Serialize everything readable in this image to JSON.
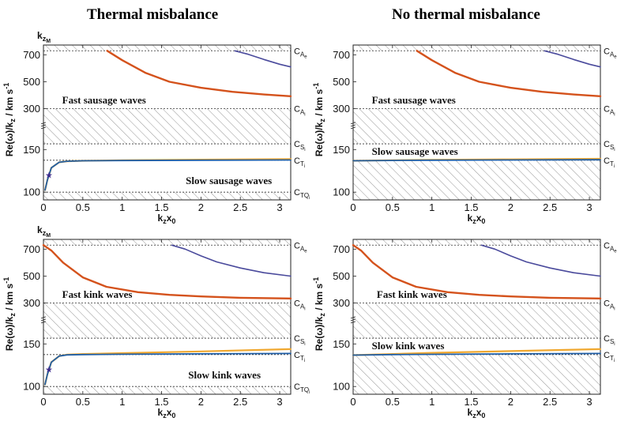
{
  "column_titles": [
    "Thermal misbalance",
    "No thermal misbalance"
  ],
  "colors": {
    "fast_upper": "#4a4a9c",
    "fast_main": "#d4521c",
    "slow_orange": "#f0a830",
    "slow_blue": "#1f5fa8",
    "star": "#3d2a8c"
  },
  "chart_data": [
    {
      "type": "line",
      "panel": "Thermal misbalance / sausage",
      "title": "Thermal misbalance",
      "corner_label": "k_{z_M}",
      "xlabel": "k_z x_0",
      "ylabel": "Re(ω)/k_z / km s^{-1}",
      "xlim": [
        0,
        3.14
      ],
      "x_ticks": [
        "0",
        "0.5",
        "1",
        "1.5",
        "2",
        "2.5",
        "3"
      ],
      "y_ticks": [
        "100",
        "150",
        "300",
        "500",
        "700"
      ],
      "y_scale": "broken axis (≈ logarithmic near 100–150)",
      "hatched_regions": [
        [
          742,
          760
        ],
        [
          165,
          300
        ],
        [
          94,
          100
        ]
      ],
      "speed_lines": {
        "C_Ae": 742,
        "C_Ai": 300,
        "C_Si": 165,
        "C_Ti": 131.5,
        "C_TQi": 100
      },
      "region_labels": [
        "Fast sausage waves",
        "Slow sausage waves"
      ],
      "series": [
        {
          "x": [
            2.43,
            2.6,
            2.8,
            3.0,
            3.14
          ],
          "y": [
            742,
            705,
            665,
            630,
            610
          ]
        },
        {
          "x": [
            0.81,
            1.0,
            1.3,
            1.6,
            2.0,
            2.4,
            2.8,
            3.14
          ],
          "y": [
            742,
            660,
            565,
            500,
            455,
            425,
            405,
            392
          ]
        },
        {
          "x": [
            0.02,
            0.05,
            0.1,
            0.2,
            0.3,
            0.5,
            1.0,
            2.0,
            3.14
          ],
          "y": [
            102,
            112,
            124,
            129.5,
            130.5,
            131,
            131.6,
            132.5,
            133.5
          ]
        },
        {
          "x": [
            0.02,
            0.05,
            0.1,
            0.2,
            0.3,
            0.5,
            1.0,
            2.0,
            3.14
          ],
          "y": [
            102,
            112,
            124,
            129.5,
            130.5,
            131,
            131.2,
            131.6,
            132
          ]
        }
      ],
      "star": {
        "x": 0.07,
        "y": 117
      }
    },
    {
      "type": "line",
      "panel": "No thermal misbalance / sausage",
      "title": "No thermal misbalance",
      "xlabel": "k_z x_0",
      "ylabel": "Re(ω)/k_z / km s^{-1}",
      "xlim": [
        0,
        3.14
      ],
      "x_ticks": [
        "0",
        "0.5",
        "1",
        "1.5",
        "2",
        "2.5",
        "3"
      ],
      "y_ticks": [
        "100",
        "150",
        "300",
        "500",
        "700"
      ],
      "hatched_regions": [
        [
          742,
          760
        ],
        [
          165,
          300
        ],
        [
          94,
          131.5
        ]
      ],
      "speed_lines": {
        "C_Ae": 742,
        "C_Ai": 300,
        "C_Si": 165,
        "C_Ti": 131.5
      },
      "region_labels": [
        "Fast sausage waves",
        "Slow sausage waves"
      ],
      "series": [
        {
          "x": [
            2.43,
            2.6,
            2.8,
            3.0,
            3.14
          ],
          "y": [
            742,
            705,
            665,
            630,
            610
          ]
        },
        {
          "x": [
            0.81,
            1.0,
            1.3,
            1.6,
            2.0,
            2.4,
            2.8,
            3.14
          ],
          "y": [
            742,
            660,
            565,
            500,
            455,
            425,
            405,
            392
          ]
        },
        {
          "x": [
            0,
            0.5,
            1.0,
            2.0,
            3.14
          ],
          "y": [
            131,
            131.6,
            132.2,
            133,
            134
          ]
        },
        {
          "x": [
            0,
            0.5,
            1.0,
            2.0,
            3.14
          ],
          "y": [
            131,
            131.3,
            131.6,
            132,
            132.4
          ]
        }
      ]
    },
    {
      "type": "line",
      "panel": "Thermal misbalance / kink",
      "corner_label": "k_{z_M}",
      "xlabel": "k_z x_0",
      "ylabel": "Re(ω)/k_z / km s^{-1}",
      "xlim": [
        0,
        3.14
      ],
      "x_ticks": [
        "0",
        "0.5",
        "1",
        "1.5",
        "2",
        "2.5",
        "3"
      ],
      "y_ticks": [
        "100",
        "150",
        "300",
        "500",
        "700"
      ],
      "hatched_regions": [
        [
          742,
          760
        ],
        [
          165,
          300
        ],
        [
          94,
          100
        ]
      ],
      "speed_lines": {
        "C_Ae": 742,
        "C_Ai": 300,
        "C_Si": 165,
        "C_Ti": 131.5,
        "C_TQi": 100
      },
      "region_labels": [
        "Fast kink waves",
        "Slow kink waves"
      ],
      "series": [
        {
          "x": [
            1.63,
            1.8,
            2.0,
            2.2,
            2.5,
            2.8,
            3.14
          ],
          "y": [
            742,
            700,
            650,
            605,
            560,
            525,
            500
          ]
        },
        {
          "x": [
            0,
            0.1,
            0.25,
            0.5,
            0.8,
            1.2,
            1.6,
            2.0,
            2.5,
            3.14
          ],
          "y": [
            742,
            690,
            600,
            490,
            420,
            380,
            360,
            348,
            338,
            333
          ]
        },
        {
          "x": [
            0.02,
            0.05,
            0.1,
            0.2,
            0.3,
            0.5,
            1.0,
            2.0,
            3.14
          ],
          "y": [
            102,
            112,
            124,
            130,
            131.5,
            132.5,
            134,
            137,
            141
          ]
        },
        {
          "x": [
            0.02,
            0.05,
            0.1,
            0.2,
            0.3,
            0.5,
            1.0,
            2.0,
            3.14
          ],
          "y": [
            102,
            112,
            124,
            130,
            131.2,
            131.6,
            132.1,
            132.8,
            133.5
          ]
        }
      ],
      "star": {
        "x": 0.07,
        "y": 117
      }
    },
    {
      "type": "line",
      "panel": "No thermal misbalance / kink",
      "xlabel": "k_z x_0",
      "ylabel": "Re(ω)/k_z / km s^{-1}",
      "xlim": [
        0,
        3.14
      ],
      "x_ticks": [
        "0",
        "0.5",
        "1",
        "1.5",
        "2",
        "2.5",
        "3"
      ],
      "y_ticks": [
        "100",
        "150",
        "300",
        "500",
        "700"
      ],
      "hatched_regions": [
        [
          742,
          760
        ],
        [
          165,
          300
        ],
        [
          94,
          131.5
        ]
      ],
      "speed_lines": {
        "C_Ae": 742,
        "C_Ai": 300,
        "C_Si": 165,
        "C_Ti": 131.5
      },
      "region_labels": [
        "Fast kink waves",
        "Slow kink waves"
      ],
      "series": [
        {
          "x": [
            1.63,
            1.8,
            2.0,
            2.2,
            2.5,
            2.8,
            3.14
          ],
          "y": [
            742,
            700,
            650,
            605,
            560,
            525,
            500
          ]
        },
        {
          "x": [
            0,
            0.1,
            0.25,
            0.5,
            0.8,
            1.2,
            1.6,
            2.0,
            2.5,
            3.14
          ],
          "y": [
            742,
            690,
            600,
            490,
            420,
            380,
            360,
            348,
            338,
            333
          ]
        },
        {
          "x": [
            0,
            0.5,
            1.0,
            2.0,
            3.14
          ],
          "y": [
            131,
            132.5,
            134.5,
            137.5,
            141
          ]
        },
        {
          "x": [
            0,
            0.5,
            1.0,
            2.0,
            3.14
          ],
          "y": [
            131,
            131.5,
            132,
            132.8,
            133.5
          ]
        }
      ]
    }
  ]
}
